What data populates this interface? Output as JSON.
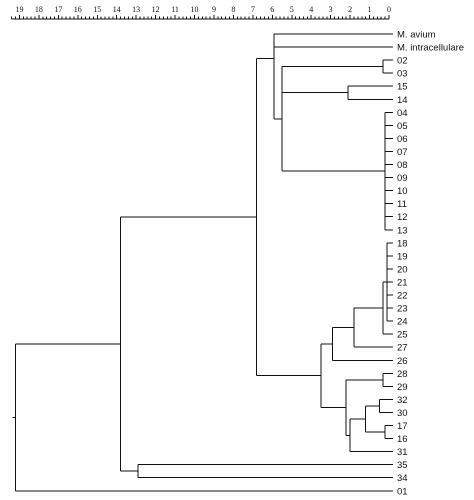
{
  "scale": {
    "labels": [
      "19",
      "18",
      "17",
      "16",
      "15",
      "14",
      "13",
      "12",
      "11",
      "10",
      "9",
      "8",
      "7",
      "6",
      "5",
      "4",
      "3",
      "2",
      "1",
      "0"
    ]
  },
  "leaves": [
    {
      "id": "avium",
      "label": "M. avium"
    },
    {
      "id": "intra",
      "label": "M. intracellulare"
    },
    {
      "id": "02",
      "label": "02"
    },
    {
      "id": "03",
      "label": "03"
    },
    {
      "id": "15",
      "label": "15"
    },
    {
      "id": "14",
      "label": "14"
    },
    {
      "id": "04",
      "label": "04"
    },
    {
      "id": "05",
      "label": "05"
    },
    {
      "id": "06",
      "label": "06"
    },
    {
      "id": "07",
      "label": "07"
    },
    {
      "id": "08",
      "label": "08"
    },
    {
      "id": "09",
      "label": "09"
    },
    {
      "id": "10",
      "label": "10"
    },
    {
      "id": "11",
      "label": "11"
    },
    {
      "id": "12",
      "label": "12"
    },
    {
      "id": "13",
      "label": "13"
    },
    {
      "id": "18",
      "label": "18"
    },
    {
      "id": "19",
      "label": "19"
    },
    {
      "id": "20",
      "label": "20"
    },
    {
      "id": "21",
      "label": "21"
    },
    {
      "id": "22",
      "label": "22"
    },
    {
      "id": "23",
      "label": "23"
    },
    {
      "id": "24",
      "label": "24"
    },
    {
      "id": "25",
      "label": "25"
    },
    {
      "id": "27",
      "label": "27"
    },
    {
      "id": "26",
      "label": "26"
    },
    {
      "id": "28",
      "label": "28"
    },
    {
      "id": "29",
      "label": "29"
    },
    {
      "id": "32",
      "label": "32"
    },
    {
      "id": "30",
      "label": "30"
    },
    {
      "id": "17",
      "label": "17"
    },
    {
      "id": "16",
      "label": "16"
    },
    {
      "id": "31",
      "label": "31"
    },
    {
      "id": "35",
      "label": "35"
    },
    {
      "id": "34",
      "label": "34"
    },
    {
      "id": "01",
      "label": "01"
    }
  ],
  "tree": {
    "h": 19.2,
    "children": [
      {
        "h": 13.8,
        "children": [
          {
            "h": 6.8,
            "children": [
              {
                "h": 5.9,
                "children": [
                  {
                    "leaf": "avium"
                  },
                  {
                    "h": 5.9,
                    "children": [
                      {
                        "leaf": "intra"
                      },
                      {
                        "h": 5.5,
                        "children": [
                          {
                            "h": 0.3,
                            "children": [
                              {
                                "leaf": "02"
                              },
                              {
                                "leaf": "03"
                              }
                            ]
                          },
                          {
                            "h": 2.1,
                            "children": [
                              {
                                "leaf": "15"
                              },
                              {
                                "leaf": "14"
                              }
                            ]
                          },
                          {
                            "h": 0.2,
                            "children": [
                              {
                                "leaf": "04"
                              },
                              {
                                "leaf": "05"
                              },
                              {
                                "leaf": "06"
                              },
                              {
                                "leaf": "07"
                              },
                              {
                                "leaf": "08"
                              },
                              {
                                "leaf": "09"
                              },
                              {
                                "leaf": "10"
                              },
                              {
                                "leaf": "11"
                              },
                              {
                                "leaf": "12"
                              },
                              {
                                "leaf": "13"
                              }
                            ]
                          }
                        ]
                      }
                    ]
                  }
                ]
              },
              {
                "h": 3.5,
                "children": [
                  {
                    "h": 2.9,
                    "children": [
                      {
                        "h": 1.8,
                        "children": [
                          {
                            "h": 0.3,
                            "children": [
                              {
                                "h": 0.1,
                                "children": [
                                  {
                                    "leaf": "18"
                                  },
                                  {
                                    "leaf": "19"
                                  },
                                  {
                                    "leaf": "20"
                                  },
                                  {
                                    "leaf": "21"
                                  },
                                  {
                                    "leaf": "22"
                                  },
                                  {
                                    "leaf": "23"
                                  },
                                  {
                                    "leaf": "24"
                                  }
                                ]
                              },
                              {
                                "leaf": "25"
                              }
                            ]
                          },
                          {
                            "leaf": "27"
                          }
                        ]
                      },
                      {
                        "leaf": "26"
                      }
                    ]
                  },
                  {
                    "h": 2.2,
                    "children": [
                      {
                        "h": 0.3,
                        "children": [
                          {
                            "leaf": "28"
                          },
                          {
                            "leaf": "29"
                          }
                        ]
                      },
                      {
                        "h": 2.0,
                        "children": [
                          {
                            "h": 1.2,
                            "children": [
                              {
                                "h": 0.5,
                                "children": [
                                  {
                                    "leaf": "32"
                                  },
                                  {
                                    "leaf": "30"
                                  }
                                ]
                              },
                              {
                                "h": 0.2,
                                "children": [
                                  {
                                    "leaf": "17"
                                  },
                                  {
                                    "leaf": "16"
                                  }
                                ]
                              }
                            ]
                          },
                          {
                            "leaf": "31"
                          }
                        ]
                      }
                    ]
                  }
                ]
              }
            ]
          },
          {
            "h": 12.9,
            "children": [
              {
                "leaf": "35"
              },
              {
                "leaf": "34"
              }
            ]
          }
        ]
      },
      {
        "leaf": "01"
      }
    ]
  },
  "colors": {
    "line": "#111111",
    "background": "#ffffff"
  }
}
